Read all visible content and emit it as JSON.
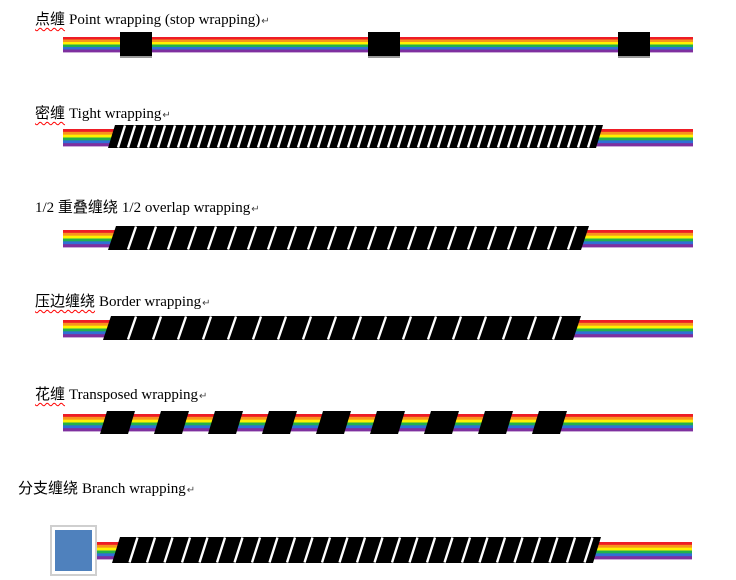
{
  "rows": [
    {
      "label_cn": "点缠",
      "label_en": "Point wrapping (stop wrapping)"
    },
    {
      "label_cn": "密缠",
      "label_en": "Tight wrapping"
    },
    {
      "label_cn": "1/2 重叠缠绕",
      "label_en": "1/2 overlap wrapping"
    },
    {
      "label_cn": "压边缠绕",
      "label_en": "Border wrapping"
    },
    {
      "label_cn": "花缠",
      "label_en": "Transposed wrapping"
    },
    {
      "label_cn": "分支缠绕",
      "label_en": "Branch wrapping"
    }
  ],
  "paragraph_mark": "↵",
  "colors": {
    "cable_stripes": [
      "#ee1c25",
      "#f7941d",
      "#fff200",
      "#22b14c",
      "#2f6fd6",
      "#7e2f9f"
    ],
    "tape": "#000000",
    "tape_line": "#ffffff",
    "tape_shadow": "#9a9a9a",
    "branch_fill": "#4f81bd",
    "branch_border": "#ffffff",
    "branch_frame": "#cfcfcf"
  }
}
